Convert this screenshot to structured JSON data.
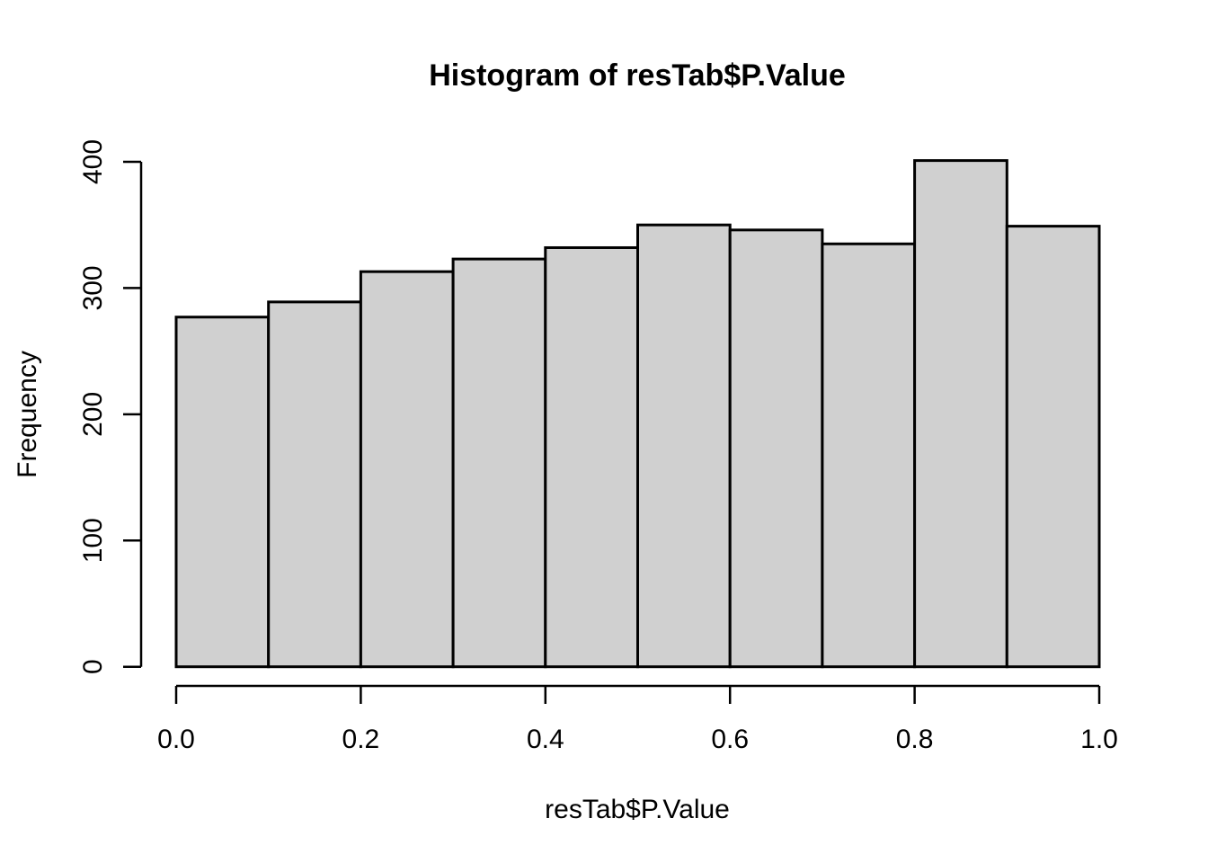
{
  "chart_data": {
    "type": "bar",
    "subtype": "histogram",
    "title": "Histogram of resTab$P.Value",
    "xlabel": "resTab$P.Value",
    "ylabel": "Frequency",
    "bin_edges": [
      0.0,
      0.1,
      0.2,
      0.3,
      0.4,
      0.5,
      0.6,
      0.7,
      0.8,
      0.9,
      1.0
    ],
    "values": [
      277,
      289,
      313,
      323,
      332,
      350,
      346,
      335,
      401,
      349
    ],
    "xlim": [
      0.0,
      1.0
    ],
    "ylim": [
      0,
      400
    ],
    "xtick_values": [
      0.0,
      0.2,
      0.4,
      0.6,
      0.8,
      1.0
    ],
    "xtick_labels": [
      "0.0",
      "0.2",
      "0.4",
      "0.6",
      "0.8",
      "1.0"
    ],
    "ytick_values": [
      0,
      100,
      200,
      300,
      400
    ],
    "ytick_labels": [
      "0",
      "100",
      "200",
      "300",
      "400"
    ],
    "grid": false,
    "legend": "none",
    "colors": {
      "bar_fill": "#d0d0d0",
      "bar_stroke": "#000000",
      "axis": "#000000",
      "text": "#000000",
      "background": "#ffffff"
    }
  }
}
